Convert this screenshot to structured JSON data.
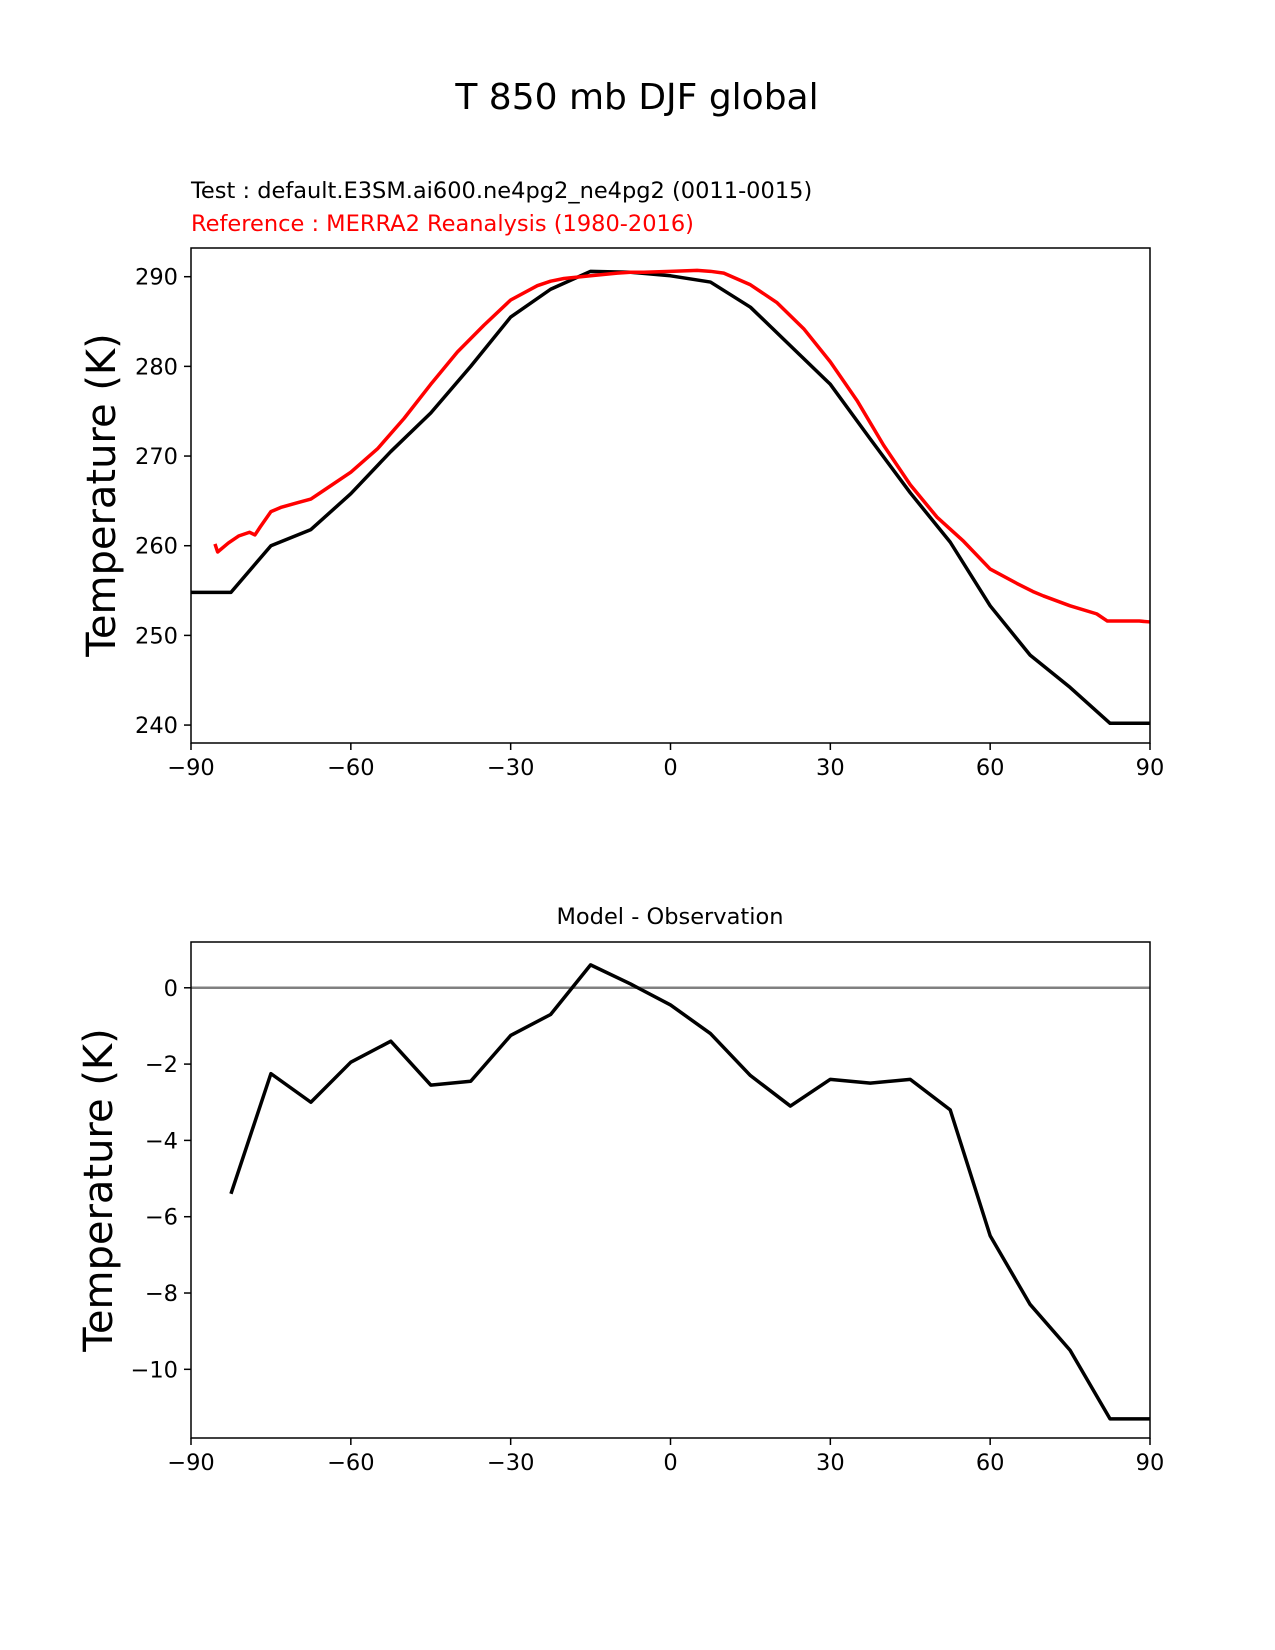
{
  "figure": {
    "title": "T 850 mb DJF global"
  },
  "chart_data": [
    {
      "type": "line",
      "test_label": "Test : default.E3SM.ai600.ne4pg2_ne4pg2 (0011-0015)",
      "reference_label": "Reference : MERRA2 Reanalysis (1980-2016)",
      "xlabel": "",
      "ylabel": "Temperature (K)",
      "xlim": [
        -90,
        90
      ],
      "ylim": [
        238,
        293.2
      ],
      "xticks": [
        -90,
        -60,
        -30,
        0,
        30,
        60,
        90
      ],
      "xtick_labels": [
        "−90",
        "−60",
        "−30",
        "0",
        "30",
        "60",
        "90"
      ],
      "yticks": [
        240,
        250,
        260,
        270,
        280,
        290
      ],
      "ytick_labels": [
        "240",
        "250",
        "260",
        "270",
        "280",
        "290"
      ],
      "series": [
        {
          "name": "Test",
          "color": "#000000",
          "x": [
            -90,
            -82.5,
            -75,
            -67.5,
            -60,
            -52.5,
            -45,
            -37.5,
            -30,
            -22.5,
            -15,
            -7.5,
            0,
            7.5,
            15,
            22.5,
            30,
            37.5,
            45,
            52.5,
            60,
            67.5,
            75,
            82.5,
            90
          ],
          "y": [
            254.8,
            254.8,
            260.0,
            261.8,
            265.8,
            270.5,
            274.8,
            280.0,
            285.5,
            288.6,
            290.6,
            290.5,
            290.1,
            289.4,
            286.6,
            282.3,
            278.0,
            271.9,
            265.9,
            260.4,
            253.3,
            247.8,
            244.2,
            240.2,
            240.2
          ]
        },
        {
          "name": "Reference",
          "color": "#ff0000",
          "x": [
            -85.5,
            -85,
            -83,
            -81,
            -79,
            -78,
            -77,
            -75,
            -73,
            -70,
            -67.5,
            -65,
            -60,
            -55,
            -50,
            -45,
            -40,
            -35,
            -30,
            -25,
            -22.5,
            -20,
            -15,
            -10,
            -7.5,
            -5,
            0,
            5,
            7.5,
            10,
            15,
            20,
            25,
            30,
            35,
            40,
            45,
            50,
            55,
            60,
            65,
            68,
            70,
            75,
            80,
            82,
            84,
            86,
            88,
            90
          ],
          "y": [
            260.2,
            259.3,
            260.3,
            261.1,
            261.5,
            261.2,
            262.1,
            263.8,
            264.3,
            264.8,
            265.2,
            266.2,
            268.2,
            270.8,
            274.2,
            278.0,
            281.6,
            284.6,
            287.4,
            289.0,
            289.5,
            289.8,
            290.1,
            290.4,
            290.5,
            290.5,
            290.6,
            290.7,
            290.6,
            290.4,
            289.1,
            287.1,
            284.2,
            280.5,
            276.2,
            271.2,
            266.8,
            263.2,
            260.5,
            257.4,
            255.8,
            254.9,
            254.4,
            253.3,
            252.4,
            251.6,
            251.6,
            251.6,
            251.6,
            251.5
          ]
        }
      ]
    },
    {
      "type": "line",
      "title": "Model - Observation",
      "xlabel": "",
      "ylabel": "Temperature (K)",
      "xlim": [
        -90,
        90
      ],
      "ylim": [
        -11.8,
        1.2
      ],
      "xticks": [
        -90,
        -60,
        -30,
        0,
        30,
        60,
        90
      ],
      "xtick_labels": [
        "−90",
        "−60",
        "−30",
        "0",
        "30",
        "60",
        "90"
      ],
      "yticks": [
        0,
        -2,
        -4,
        -6,
        -8,
        -10
      ],
      "ytick_labels": [
        "0",
        "−2",
        "−4",
        "−6",
        "−8",
        "−10"
      ],
      "zero_line": {
        "y": 0,
        "color": "#808080"
      },
      "series": [
        {
          "name": "Model - Observation",
          "color": "#000000",
          "x": [
            -82.5,
            -75,
            -67.5,
            -60,
            -52.5,
            -45,
            -37.5,
            -30,
            -22.5,
            -15,
            -7.5,
            0,
            7.5,
            15,
            22.5,
            30,
            37.5,
            45,
            52.5,
            60,
            67.5,
            75,
            82.5,
            90
          ],
          "y": [
            -5.4,
            -2.25,
            -3.0,
            -1.95,
            -1.4,
            -2.55,
            -2.45,
            -1.25,
            -0.7,
            0.6,
            0.1,
            -0.45,
            -1.2,
            -2.3,
            -3.1,
            -2.4,
            -2.5,
            -2.4,
            -3.2,
            -6.5,
            -8.3,
            -9.5,
            -11.3,
            -11.3
          ]
        }
      ]
    }
  ]
}
